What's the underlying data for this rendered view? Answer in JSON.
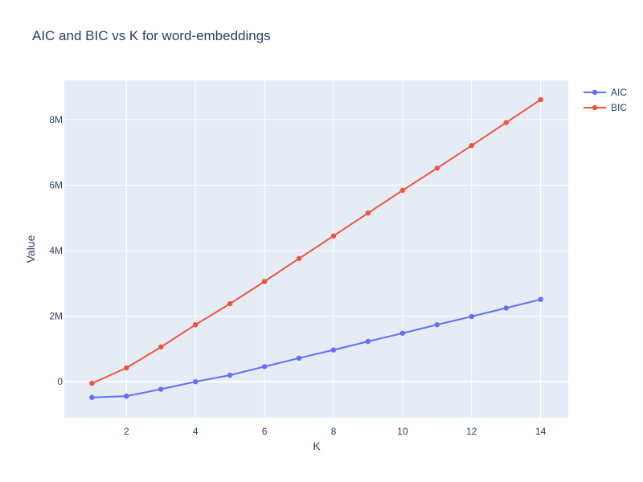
{
  "chart_data": {
    "type": "line",
    "title": "AIC and BIC vs K for word-embeddings",
    "xlabel": "K",
    "ylabel": "Value",
    "x": [
      1,
      2,
      3,
      4,
      5,
      6,
      7,
      8,
      9,
      10,
      11,
      12,
      13,
      14
    ],
    "xlim": [
      0.2,
      14.8
    ],
    "ylim": [
      -1100000,
      9200000
    ],
    "x_ticks": [
      2,
      4,
      6,
      8,
      10,
      12,
      14
    ],
    "x_tick_labels": [
      "2",
      "4",
      "6",
      "8",
      "10",
      "12",
      "14"
    ],
    "y_ticks": [
      0,
      2000000,
      4000000,
      6000000,
      8000000
    ],
    "y_tick_labels": [
      "0",
      "2M",
      "4M",
      "6M",
      "8M"
    ],
    "grid": true,
    "legend_position": "top-right",
    "series": [
      {
        "name": "AIC",
        "color": "#636efa",
        "values": [
          -480000,
          -440000,
          -230000,
          0,
          200000,
          460000,
          720000,
          970000,
          1230000,
          1480000,
          1740000,
          1990000,
          2250000,
          2510000
        ]
      },
      {
        "name": "BIC",
        "color": "#ef553b",
        "values": [
          -50000,
          420000,
          1060000,
          1740000,
          2380000,
          3060000,
          3760000,
          4450000,
          5150000,
          5840000,
          6520000,
          7210000,
          7910000,
          8610000
        ]
      }
    ]
  },
  "colors": {
    "plot_bg": "#e5ecf6",
    "grid": "#ffffff",
    "text": "#2a3f5f"
  }
}
